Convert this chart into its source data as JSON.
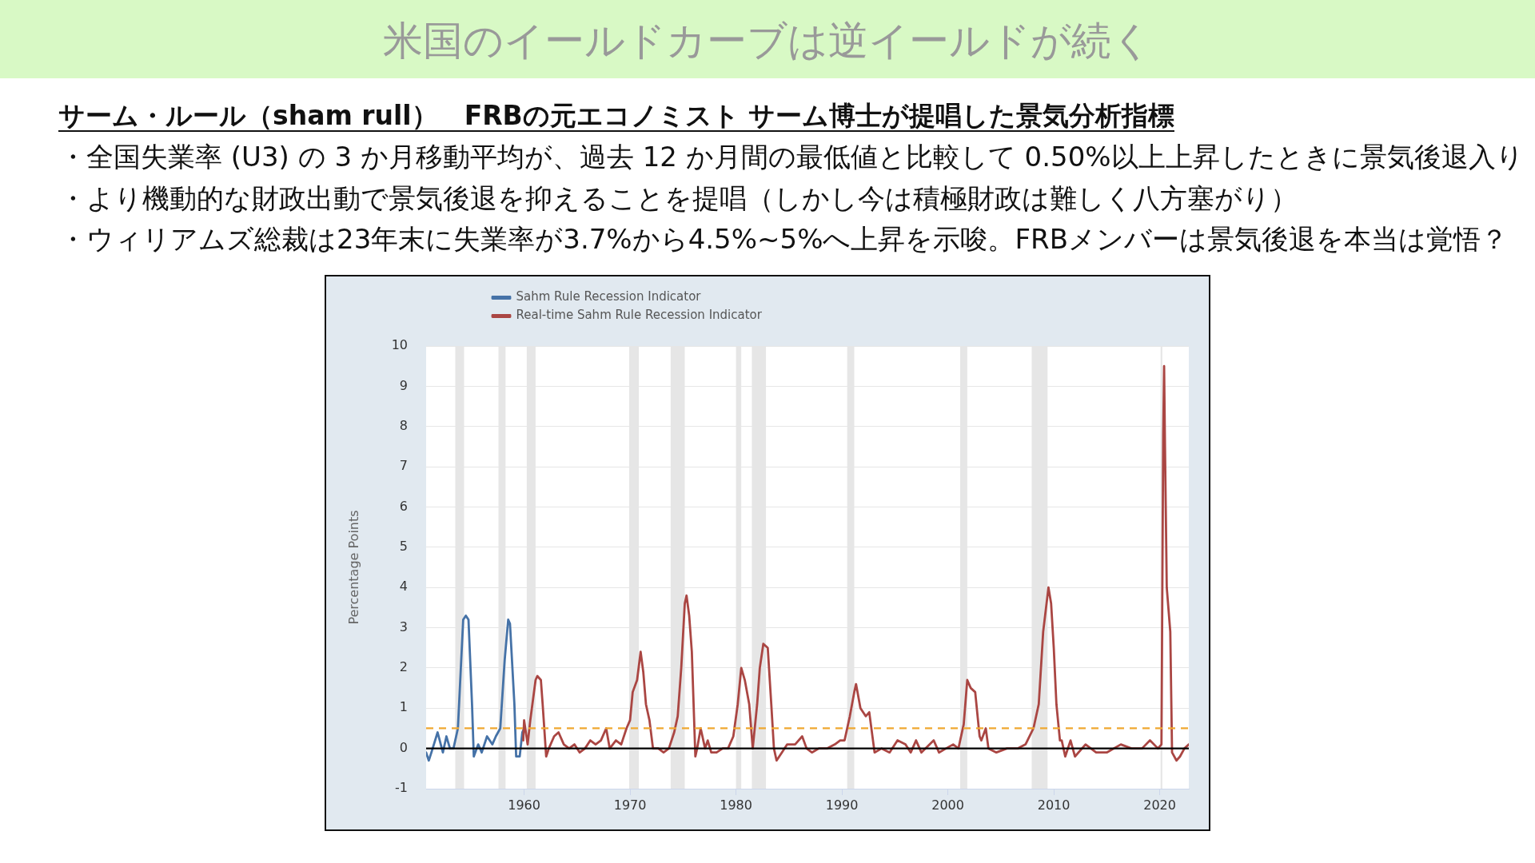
{
  "chart_data": {
    "type": "line",
    "title": "米国のイールドカーブは逆イールドが続く",
    "subtitle": "サーム・ルール（sham rull）　FRBの元エコノミスト サーム博士が提唱した景気分析指標",
    "annotations": [
      "・全国失業率 (U3) の 3 か月移動平均が、過去 12 か月間の最低値と比較して 0.50%以上上昇したときに景気後退入り",
      "・より機動的な財政出動で景気後退を抑えることを提唱（しかし今は積極財政は難しく八方塞がり）",
      "・ウィリアムズ総裁は23年末に失業率が3.7%から4.5%~5%へ上昇を示唆。FRBメンバーは景気後退を本当は覚悟？"
    ],
    "ylabel": "Percentage Points",
    "xlim": [
      "1950-10",
      "2022-10"
    ],
    "xticks": [
      "1960",
      "1970",
      "1980",
      "1990",
      "2000",
      "2010",
      "2020"
    ],
    "ylim": [
      -1,
      10
    ],
    "yticks": [
      -1,
      0,
      1,
      2,
      3,
      4,
      5,
      6,
      7,
      8,
      9,
      10
    ],
    "grid": "y",
    "legend": "top left",
    "series": [
      {
        "name": "Sahm Rule Recession Indicator",
        "color": "#4572a7",
        "x": [
          "1950-10",
          "1951-01",
          "1951-04",
          "1951-11",
          "1952-05",
          "1952-09",
          "1953-01",
          "1953-05",
          "1953-10",
          "1954-04",
          "1954-07",
          "1954-10",
          "1955-02",
          "1955-04",
          "1955-09",
          "1956-01",
          "1956-07",
          "1957-01",
          "1957-05",
          "1957-10",
          "1958-03",
          "1958-07",
          "1958-09",
          "1959-02",
          "1959-04",
          "1959-08",
          "1959-11",
          "1960-01"
        ],
        "values": [
          -0.1,
          -0.3,
          -0.1,
          0.4,
          -0.1,
          0.3,
          0,
          0,
          0.5,
          3.2,
          3.3,
          3.2,
          1.1,
          -0.2,
          0.1,
          -0.1,
          0.3,
          0.1,
          0.3,
          0.5,
          2.2,
          3.2,
          3.1,
          1.1,
          -0.2,
          -0.2,
          0.4,
          0.5
        ]
      },
      {
        "name": "Real-time Sahm Rule Recession Indicator",
        "color": "#aa4643",
        "x": [
          "1959-12",
          "1960-01",
          "1960-05",
          "1960-08",
          "1961-02",
          "1961-04",
          "1961-08",
          "1961-10",
          "1962-02",
          "1962-05",
          "1962-11",
          "1963-04",
          "1963-10",
          "1964-04",
          "1964-10",
          "1965-04",
          "1965-10",
          "1966-04",
          "1966-10",
          "1967-04",
          "1967-10",
          "1968-02",
          "1968-09",
          "1969-03",
          "1969-09",
          "1970-01",
          "1970-04",
          "1970-09",
          "1971-01",
          "1971-04",
          "1971-07",
          "1971-11",
          "1972-03",
          "1972-09",
          "1973-03",
          "1973-09",
          "1974-03",
          "1974-07",
          "1974-11",
          "1975-03",
          "1975-05",
          "1975-08",
          "1975-11",
          "1976-03",
          "1976-05",
          "1976-09",
          "1977-02",
          "1977-05",
          "1977-09",
          "1978-03",
          "1978-10",
          "1979-04",
          "1979-10",
          "1980-03",
          "1980-07",
          "1980-11",
          "1981-04",
          "1981-08",
          "1982-01",
          "1982-04",
          "1982-08",
          "1983-01",
          "1983-05",
          "1983-08",
          "1983-11",
          "1984-05",
          "1984-11",
          "1985-08",
          "1986-04",
          "1986-09",
          "1987-03",
          "1987-11",
          "1988-08",
          "1989-05",
          "1989-11",
          "1990-04",
          "1990-10",
          "1991-03",
          "1991-05",
          "1991-10",
          "1992-04",
          "1992-08",
          "1993-02",
          "1993-10",
          "1994-07",
          "1995-04",
          "1996-01",
          "1996-07",
          "1997-01",
          "1997-07",
          "1998-09",
          "1999-03",
          "1999-11",
          "2000-07",
          "2001-01",
          "2001-07",
          "2001-11",
          "2002-03",
          "2002-08",
          "2003-01",
          "2003-03",
          "2003-08",
          "2003-11",
          "2004-08",
          "2005-08",
          "2006-08",
          "2007-05",
          "2008-02",
          "2008-08",
          "2009-01",
          "2009-07",
          "2009-10",
          "2010-01",
          "2010-04",
          "2010-08",
          "2010-10",
          "2011-02",
          "2011-08",
          "2012-01",
          "2013-01",
          "2014-01",
          "2015-01",
          "2016-05",
          "2017-05",
          "2018-05",
          "2019-02",
          "2019-11",
          "2020-03",
          "2020-05",
          "2020-06",
          "2020-07",
          "2020-09",
          "2021-01",
          "2021-03",
          "2021-08",
          "2021-12",
          "2022-05",
          "2022-10"
        ],
        "values": [
          0.2,
          0.7,
          0.1,
          0.7,
          1.7,
          1.8,
          1.7,
          1.1,
          -0.2,
          0,
          0.3,
          0.4,
          0.1,
          0,
          0.1,
          -0.1,
          0,
          0.2,
          0.1,
          0.2,
          0.5,
          0,
          0.2,
          0.1,
          0.5,
          0.7,
          1.4,
          1.7,
          2.4,
          1.9,
          1.1,
          0.7,
          0,
          0,
          -0.1,
          0,
          0.4,
          0.8,
          2.0,
          3.6,
          3.8,
          3.3,
          2.4,
          -0.2,
          0,
          0.5,
          0,
          0.2,
          -0.1,
          -0.1,
          0,
          0,
          0.3,
          1.1,
          2.0,
          1.7,
          1.1,
          0,
          1.1,
          2.0,
          2.6,
          2.5,
          1.1,
          0,
          -0.3,
          -0.1,
          0.1,
          0.1,
          0.3,
          0,
          -0.1,
          0,
          0,
          0.1,
          0.2,
          0.2,
          0.8,
          1.4,
          1.6,
          1.0,
          0.8,
          0.9,
          -0.1,
          0,
          -0.1,
          0.2,
          0.1,
          -0.1,
          0.2,
          -0.1,
          0.2,
          -0.1,
          0,
          0.1,
          0,
          0.6,
          1.7,
          1.5,
          1.4,
          0.3,
          0.2,
          0.5,
          0,
          -0.1,
          0,
          0,
          0.1,
          0.5,
          1.1,
          2.9,
          4.0,
          3.6,
          2.5,
          1.1,
          0.2,
          0.2,
          -0.2,
          0.2,
          -0.2,
          0.1,
          -0.1,
          -0.1,
          0.1,
          0,
          0,
          0.2,
          0,
          0.1,
          7.8,
          9.5,
          7.5,
          4.0,
          2.9,
          -0.1,
          -0.3,
          -0.2,
          0,
          0.1
        ]
      }
    ],
    "ref_lines": [
      {
        "axis": "y",
        "value": 0.5,
        "color": "#f0a830",
        "line_style": "dashed"
      },
      {
        "axis": "y",
        "value": 0,
        "color": "#000000"
      }
    ],
    "bands": [
      {
        "axis": "x",
        "from": "1953-07",
        "to": "1954-05",
        "color": "#e6e6e6"
      },
      {
        "axis": "x",
        "from": "1957-08",
        "to": "1958-04",
        "color": "#e6e6e6"
      },
      {
        "axis": "x",
        "from": "1960-04",
        "to": "1961-02",
        "color": "#e6e6e6"
      },
      {
        "axis": "x",
        "from": "1969-12",
        "to": "1970-11",
        "color": "#e6e6e6"
      },
      {
        "axis": "x",
        "from": "1973-11",
        "to": "1975-03",
        "color": "#e6e6e6"
      },
      {
        "axis": "x",
        "from": "1980-01",
        "to": "1980-07",
        "color": "#e6e6e6"
      },
      {
        "axis": "x",
        "from": "1981-07",
        "to": "1982-11",
        "color": "#e6e6e6"
      },
      {
        "axis": "x",
        "from": "1990-07",
        "to": "1991-03",
        "color": "#e6e6e6"
      },
      {
        "axis": "x",
        "from": "2001-03",
        "to": "2001-11",
        "color": "#e6e6e6"
      },
      {
        "axis": "x",
        "from": "2007-12",
        "to": "2009-06",
        "color": "#e6e6e6"
      },
      {
        "axis": "x",
        "from": "2020-02",
        "to": "2020-04",
        "color": "#e6e6e6"
      }
    ]
  }
}
